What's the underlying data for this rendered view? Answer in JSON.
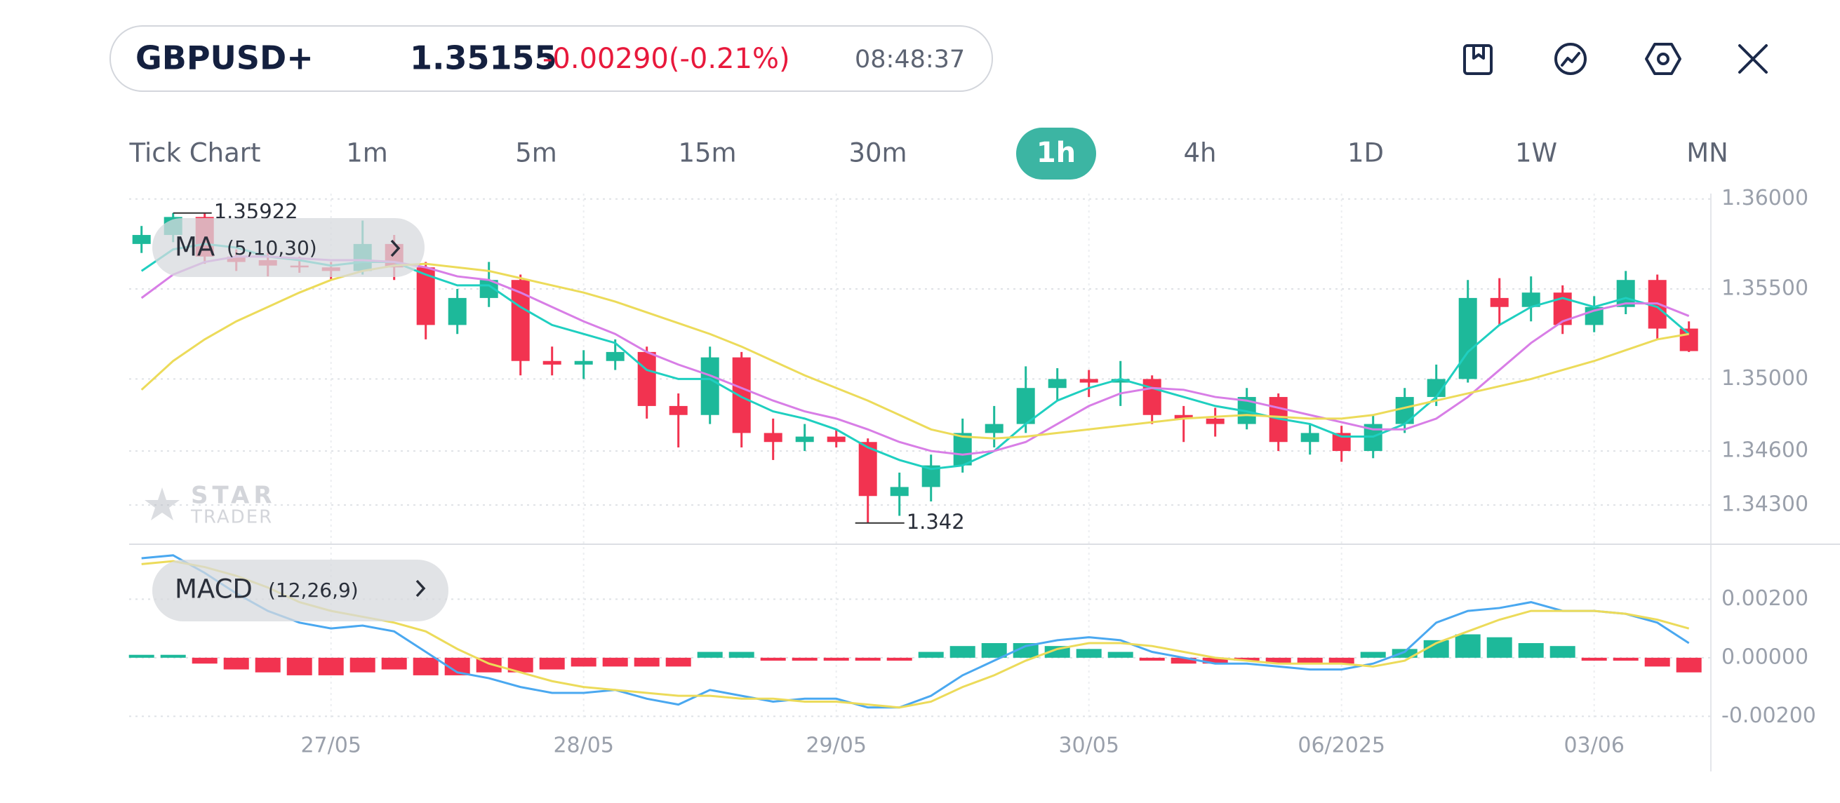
{
  "header": {
    "symbol": "GBPUSD+",
    "price": "1.35155",
    "change": "-0.00290(-0.21%)",
    "time": "08:48:37"
  },
  "timeframes": [
    "Tick Chart",
    "1m",
    "5m",
    "15m",
    "30m",
    "1h",
    "4h",
    "1D",
    "1W",
    "MN"
  ],
  "active_timeframe_index": 5,
  "watermark": [
    "STAR",
    "TRADER"
  ],
  "chart_data": [
    {
      "type": "candlestick",
      "indicator": "MA",
      "indicator_params": "(5,10,30)",
      "categories": [
        null,
        null,
        null,
        null,
        null,
        null,
        "27/05",
        null,
        null,
        null,
        null,
        null,
        null,
        null,
        "28/05",
        null,
        null,
        null,
        null,
        null,
        null,
        null,
        "29/05",
        null,
        null,
        null,
        null,
        null,
        null,
        null,
        "30/05",
        null,
        null,
        null,
        null,
        null,
        null,
        null,
        "06/2025",
        null,
        null,
        null,
        null,
        null,
        null,
        null,
        "03/06",
        null,
        null,
        null
      ],
      "open": [
        1.3575,
        1.358,
        1.359,
        1.3568,
        1.3566,
        1.3563,
        1.3562,
        1.356,
        1.3575,
        1.3562,
        1.353,
        1.3545,
        1.3555,
        1.351,
        1.3508,
        1.351,
        1.3515,
        1.3485,
        1.348,
        1.3512,
        1.347,
        1.3465,
        1.3468,
        1.3465,
        1.3435,
        1.344,
        1.3452,
        1.347,
        1.3475,
        1.3495,
        1.35,
        1.3498,
        1.35,
        1.348,
        1.3478,
        1.3475,
        1.349,
        1.3465,
        1.347,
        1.346,
        1.3475,
        1.349,
        1.35,
        1.3545,
        1.354,
        1.3548,
        1.353,
        1.354,
        1.3555,
        1.3528
      ],
      "high": [
        1.3585,
        1.35922,
        1.3592,
        1.3572,
        1.357,
        1.3568,
        1.3565,
        1.3588,
        1.358,
        1.3565,
        1.355,
        1.3565,
        1.3558,
        1.3518,
        1.3516,
        1.3522,
        1.3518,
        1.3492,
        1.3518,
        1.3515,
        1.3478,
        1.3475,
        1.3472,
        1.3467,
        1.3448,
        1.3458,
        1.3478,
        1.3485,
        1.3507,
        1.3506,
        1.3505,
        1.351,
        1.3502,
        1.3485,
        1.3484,
        1.3495,
        1.3492,
        1.3475,
        1.3474,
        1.348,
        1.3495,
        1.3508,
        1.3555,
        1.3556,
        1.3557,
        1.3552,
        1.3546,
        1.356,
        1.3558,
        1.3532
      ],
      "low": [
        1.357,
        1.3576,
        1.3564,
        1.356,
        1.3557,
        1.3559,
        1.3555,
        1.3558,
        1.3555,
        1.3522,
        1.3525,
        1.354,
        1.3502,
        1.3502,
        1.35,
        1.3505,
        1.3478,
        1.3462,
        1.3475,
        1.3462,
        1.3455,
        1.346,
        1.3462,
        1.342,
        1.3424,
        1.3432,
        1.3448,
        1.3462,
        1.347,
        1.3488,
        1.349,
        1.3485,
        1.3475,
        1.3465,
        1.3468,
        1.3472,
        1.346,
        1.3458,
        1.3454,
        1.3456,
        1.347,
        1.3485,
        1.3498,
        1.353,
        1.3532,
        1.3525,
        1.3526,
        1.3536,
        1.3522,
        1.3515
      ],
      "close": [
        1.358,
        1.359,
        1.3568,
        1.3565,
        1.3563,
        1.3562,
        1.356,
        1.3575,
        1.3562,
        1.353,
        1.3545,
        1.3555,
        1.351,
        1.3508,
        1.351,
        1.3515,
        1.3485,
        1.348,
        1.3512,
        1.347,
        1.3465,
        1.3468,
        1.3465,
        1.3435,
        1.344,
        1.3452,
        1.347,
        1.3475,
        1.3495,
        1.35,
        1.3498,
        1.35,
        1.348,
        1.3478,
        1.3475,
        1.349,
        1.3465,
        1.347,
        1.346,
        1.3475,
        1.349,
        1.35,
        1.3545,
        1.354,
        1.3548,
        1.353,
        1.354,
        1.3555,
        1.3528,
        1.35155
      ],
      "up_color": "#1db99a",
      "down_color": "#f23350",
      "series": [
        {
          "color": "#1fcfc0",
          "values": [
            1.356,
            1.3572,
            1.3575,
            1.3573,
            1.3568,
            1.3566,
            1.3563,
            1.3565,
            1.3565,
            1.3558,
            1.3552,
            1.3552,
            1.354,
            1.353,
            1.3525,
            1.352,
            1.3505,
            1.35,
            1.35,
            1.349,
            1.3482,
            1.3478,
            1.3472,
            1.3462,
            1.3455,
            1.345,
            1.3452,
            1.346,
            1.3475,
            1.3488,
            1.3495,
            1.35,
            1.3495,
            1.349,
            1.3485,
            1.3482,
            1.3478,
            1.3475,
            1.3468,
            1.3468,
            1.3475,
            1.349,
            1.3515,
            1.353,
            1.354,
            1.3545,
            1.354,
            1.3545,
            1.354,
            1.3525
          ]
        },
        {
          "color": "#d87ee6",
          "values": [
            1.3545,
            1.3558,
            1.3565,
            1.3568,
            1.3568,
            1.3567,
            1.3566,
            1.3566,
            1.3565,
            1.3562,
            1.3557,
            1.3555,
            1.3548,
            1.354,
            1.3532,
            1.3525,
            1.3515,
            1.3508,
            1.3502,
            1.3495,
            1.3488,
            1.3482,
            1.3478,
            1.3472,
            1.3465,
            1.346,
            1.3458,
            1.346,
            1.3465,
            1.3475,
            1.3485,
            1.3492,
            1.3495,
            1.3494,
            1.349,
            1.3488,
            1.3484,
            1.348,
            1.3476,
            1.3472,
            1.3472,
            1.3478,
            1.349,
            1.3505,
            1.352,
            1.3532,
            1.3538,
            1.3542,
            1.3542,
            1.3535
          ]
        },
        {
          "color": "#ecdb5a",
          "values": [
            1.3494,
            1.351,
            1.3522,
            1.3532,
            1.354,
            1.3548,
            1.3555,
            1.356,
            1.3563,
            1.3564,
            1.3562,
            1.356,
            1.3556,
            1.3552,
            1.3548,
            1.3543,
            1.3537,
            1.3531,
            1.3525,
            1.3518,
            1.351,
            1.3502,
            1.3495,
            1.3488,
            1.348,
            1.3472,
            1.3468,
            1.3467,
            1.3468,
            1.347,
            1.3472,
            1.3474,
            1.3476,
            1.3478,
            1.3479,
            1.348,
            1.3479,
            1.3478,
            1.3478,
            1.348,
            1.3484,
            1.3488,
            1.3492,
            1.3496,
            1.35,
            1.3505,
            1.351,
            1.3516,
            1.3522,
            1.3525
          ]
        }
      ],
      "ylim": [
        1.3409,
        1.3603
      ],
      "yticks": [
        {
          "value": 1.36,
          "label": "1.36000"
        },
        {
          "value": 1.355,
          "label": "1.35500"
        },
        {
          "value": 1.35,
          "label": "1.35000"
        },
        {
          "value": 1.346,
          "label": "1.34600"
        },
        {
          "value": 1.343,
          "label": "1.34300"
        }
      ],
      "grid": true,
      "max_label": 1.35922,
      "min_label": 1.342
    },
    {
      "type": "macd",
      "indicator": "MACD",
      "indicator_params": "(12,26,9)",
      "histogram": [
        0.0001,
        0.0001,
        -0.0002,
        -0.0004,
        -0.0005,
        -0.0006,
        -0.0006,
        -0.0005,
        -0.0004,
        -0.0006,
        -0.0006,
        -0.0005,
        -0.0005,
        -0.0004,
        -0.0003,
        -0.0003,
        -0.0003,
        -0.0003,
        0.0002,
        0.0002,
        -0.0001,
        -0.0001,
        -0.0001,
        -0.0001,
        -0.0001,
        0.0002,
        0.0004,
        0.0005,
        0.0005,
        0.0004,
        0.0003,
        0.0002,
        -0.0001,
        -0.0002,
        -0.0002,
        -0.0001,
        -0.0002,
        -0.0002,
        -0.0002,
        0.0002,
        0.0003,
        0.0006,
        0.0008,
        0.0007,
        0.0005,
        0.0004,
        -0.0001,
        -0.0001,
        -0.0003,
        -0.0005
      ],
      "up_color": "#1db99a",
      "down_color": "#f23350",
      "series": [
        {
          "color": "#4aa8f0",
          "values": [
            0.0034,
            0.0035,
            0.0029,
            0.0022,
            0.0016,
            0.0012,
            0.001,
            0.0011,
            0.0009,
            0.0002,
            -0.0005,
            -0.0007,
            -0.001,
            -0.0012,
            -0.0012,
            -0.0011,
            -0.0014,
            -0.0016,
            -0.0011,
            -0.0013,
            -0.0015,
            -0.0014,
            -0.0014,
            -0.0017,
            -0.0017,
            -0.0013,
            -0.0006,
            -0.0001,
            0.0004,
            0.0006,
            0.0007,
            0.0006,
            0.0002,
            0,
            -0.0002,
            -0.0002,
            -0.0003,
            -0.0004,
            -0.0004,
            -0.0002,
            0.0002,
            0.0012,
            0.0016,
            0.0017,
            0.0019,
            0.0016,
            0.0016,
            0.0015,
            0.0012,
            0.0005
          ]
        },
        {
          "color": "#ecdb5a",
          "values": [
            0.0032,
            0.0033,
            0.0031,
            0.0028,
            0.0024,
            0.0019,
            0.0016,
            0.0014,
            0.0012,
            0.0009,
            0.0003,
            -0.0002,
            -0.0005,
            -0.0008,
            -0.001,
            -0.0011,
            -0.0012,
            -0.0013,
            -0.0013,
            -0.0014,
            -0.0014,
            -0.0015,
            -0.0015,
            -0.0016,
            -0.0017,
            -0.0015,
            -0.001,
            -0.0006,
            -0.0001,
            0.0003,
            0.0005,
            0.0005,
            0.0004,
            0.0002,
            0,
            -0.0001,
            -0.0002,
            -0.0002,
            -0.0002,
            -0.0003,
            -0.0001,
            0.0005,
            0.0009,
            0.0013,
            0.0016,
            0.0016,
            0.0016,
            0.0015,
            0.0013,
            0.001
          ]
        }
      ],
      "ylim": [
        -0.00216,
        0.00364
      ],
      "yticks": [
        {
          "value": 0.002,
          "label": "0.00200"
        },
        {
          "value": 0,
          "label": "0.00000"
        },
        {
          "value": -0.002,
          "label": "-0.00200"
        }
      ],
      "grid": true
    }
  ]
}
